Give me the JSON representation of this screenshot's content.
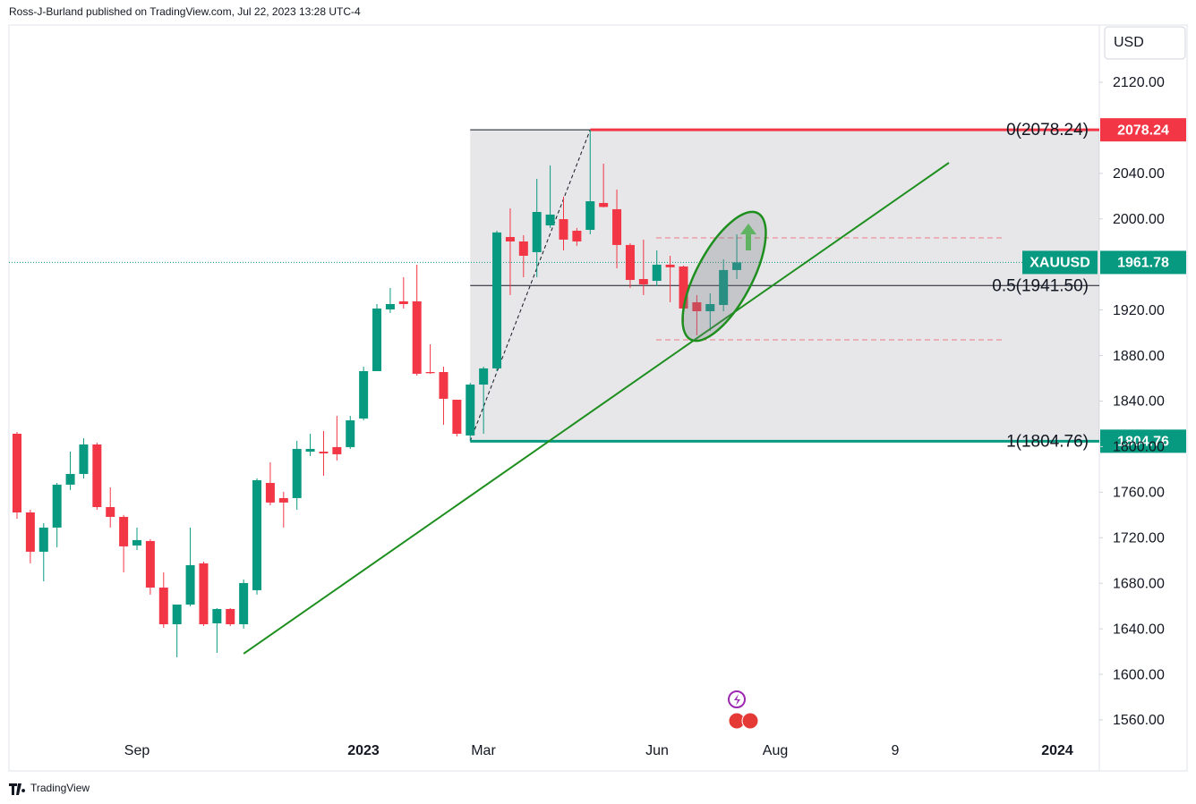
{
  "header": "Ross-J-Burland published on TradingView.com, Jul 22, 2023 13:28 UTC-4",
  "footer": "TradingView",
  "chart_data": {
    "type": "candlestick",
    "currency": "USD",
    "up_color": "#089981",
    "down_color": "#f23645",
    "ylim": [
      1515.2,
      2184.4
    ],
    "yticks": [
      {
        "value": 1560,
        "label": "1560.00"
      },
      {
        "value": 1600,
        "label": "1600.00"
      },
      {
        "value": 1640,
        "label": "1640.00"
      },
      {
        "value": 1680,
        "label": "1680.00"
      },
      {
        "value": 1720,
        "label": "1720.00"
      },
      {
        "value": 1760,
        "label": "1760.00"
      },
      {
        "value": 1800,
        "label": "1800.00"
      },
      {
        "value": 1840,
        "label": "1840.00"
      },
      {
        "value": 1880,
        "label": "1880.00"
      },
      {
        "value": 1920,
        "label": "1920.00"
      },
      {
        "value": 2000,
        "label": "2000.00"
      },
      {
        "value": 2040,
        "label": "2040.00"
      },
      {
        "value": 2120,
        "label": "2120.00"
      }
    ],
    "xtick_labels": [
      "Sep",
      "2023",
      "Mar",
      "Jun",
      "Aug",
      "9",
      "2024"
    ],
    "open": [
      1811.3,
      1742.2,
      1707.7,
      1728.9,
      1766.6,
      1776.0,
      1801.9,
      1746.9,
      1738.3,
      1713.2,
      1717.1,
      1676.2,
      1644.0,
      1661.3,
      1697.5,
      1644.8,
      1657.4,
      1644.0,
      1673.9,
      1768.1,
      1754.8,
      1754.8,
      1795.6,
      1795.6,
      1799.6,
      1799.6,
      1824.7,
      1866.3,
      1920.5,
      1927.6,
      1927.6,
      1865.5,
      1865.5,
      1841.2,
      1809.8,
      1854.5,
      1868.7,
      1984.1,
      1980.2,
      1970.8,
      1994.3,
      1999.8,
      1989.6,
      1990.4,
      2014.0,
      2008.5,
      1977.1,
      1947.2,
      1945.6,
      1959.8,
      1958.2,
      1926.8,
      1918.9,
      1924.4,
      1955.1
    ],
    "high": [
      1812.9,
      1744.6,
      1732.8,
      1768.1,
      1795.6,
      1807.4,
      1803.5,
      1764.2,
      1740.0,
      1728.9,
      1718.7,
      1689.6,
      1661.3,
      1728.9,
      1699.0,
      1658.2,
      1658.2,
      1683.3,
      1772.1,
      1786.2,
      1760.3,
      1805.1,
      1811.3,
      1813.7,
      1827.0,
      1827.0,
      1870.2,
      1925.2,
      1939.4,
      1948.8,
      1959.8,
      1889.9,
      1870.2,
      1841.2,
      1856.0,
      1870.2,
      1989.6,
      2009.3,
      1985.7,
      2035.2,
      2047.0,
      2019.5,
      1992.0,
      2078.24,
      2048.5,
      2025.8,
      1978.6,
      1981.8,
      1972.3,
      1967.6,
      1959.0,
      1933.1,
      1934.6,
      1964.5,
      1986.5
    ],
    "low": [
      1736.7,
      1697.5,
      1681.7,
      1711.6,
      1761.9,
      1772.1,
      1744.6,
      1728.9,
      1689.6,
      1709.2,
      1670.0,
      1640.9,
      1615.0,
      1659.8,
      1642.5,
      1618.9,
      1642.5,
      1640.1,
      1670.0,
      1748.5,
      1728.9,
      1744.6,
      1791.7,
      1774.4,
      1787.8,
      1798.0,
      1823.1,
      1866.3,
      1917.4,
      1921.3,
      1862.4,
      1864.0,
      1819.2,
      1809.0,
      1804.76,
      1811.3,
      1866.3,
      1933.1,
      1948.8,
      1948.8,
      1992.0,
      1972.3,
      1976.3,
      1986.5,
      2010.0,
      1956.6,
      1939.4,
      1933.1,
      1940.9,
      1926.8,
      1909.5,
      1897.7,
      1901.7,
      1918.9,
      1947.2
    ],
    "close": [
      1742.2,
      1707.7,
      1728.9,
      1766.6,
      1776.0,
      1801.9,
      1746.9,
      1738.3,
      1712.4,
      1717.9,
      1676.2,
      1644.0,
      1661.3,
      1695.9,
      1644.0,
      1657.4,
      1644.0,
      1680.2,
      1770.5,
      1750.9,
      1750.9,
      1798.0,
      1798.0,
      1794.1,
      1793.3,
      1823.1,
      1866.3,
      1921.3,
      1925.2,
      1925.2,
      1864.0,
      1864.5,
      1842.0,
      1811.3,
      1854.5,
      1868.7,
      1988.1,
      1980.2,
      1967.6,
      2006.1,
      2003.8,
      1981.8,
      1980.2,
      2015.5,
      2010.5,
      1977.1,
      1946.4,
      1942.5,
      1959.8,
      1957.5,
      1921.3,
      1918.9,
      1925.2,
      1955.1,
      1961.78
    ],
    "last_price": {
      "symbol": "XAUUSD",
      "value": 1961.78
    },
    "fib_levels": [
      {
        "label": "0(2078.24)",
        "value": 2078.24,
        "color": "#f23645",
        "box": true
      },
      {
        "label": "0.5(1941.50)",
        "value": 1941.5,
        "color": "#131722",
        "box": false
      },
      {
        "label": "1(1804.76)",
        "value": 1804.76,
        "color": "#089981",
        "box": true
      }
    ],
    "trendline": {
      "start": 1618.1,
      "end": 2049.3,
      "color": "#1e8f1e"
    },
    "range_lines": [
      1983.3,
      1893.8
    ]
  }
}
